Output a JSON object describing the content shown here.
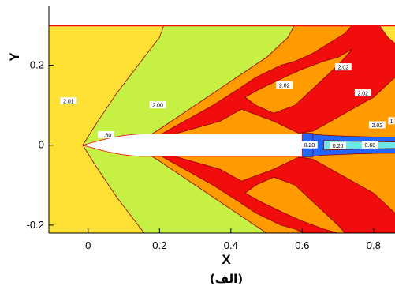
{
  "chart_data": {
    "type": "contour",
    "xlabel": "X",
    "ylabel": "Y",
    "xlim": [
      -0.11,
      0.86
    ],
    "ylim": [
      -0.22,
      0.3
    ],
    "x_ticks": [
      "0",
      "0.2",
      "0.4",
      "0.6",
      "0.8"
    ],
    "x_tick_values": [
      0,
      0.2,
      0.4,
      0.6,
      0.8
    ],
    "y_ticks": [
      "0.2",
      "0",
      "-0.2"
    ],
    "y_tick_values": [
      0.2,
      0,
      -0.2
    ],
    "caption": "(الف)",
    "contour_labels": [
      {
        "text": "2.01",
        "x": -0.055,
        "y": 0.11
      },
      {
        "text": "1.80",
        "x": 0.05,
        "y": 0.025
      },
      {
        "text": "2.00",
        "x": 0.195,
        "y": 0.1
      },
      {
        "text": "2.02",
        "x": 0.55,
        "y": 0.15
      },
      {
        "text": "2.02",
        "x": 0.715,
        "y": 0.195
      },
      {
        "text": "2.02",
        "x": 0.77,
        "y": 0.13
      },
      {
        "text": "2.02",
        "x": 0.81,
        "y": 0.05
      },
      {
        "text": "0.20",
        "x": 0.62,
        "y": 0.0
      },
      {
        "text": "0.20",
        "x": 0.7,
        "y": -0.002
      },
      {
        "text": "0.60",
        "x": 0.79,
        "y": 0.0
      },
      {
        "text": "1",
        "x": 0.85,
        "y": 0.06
      }
    ],
    "body_shape": {
      "nose_x": -0.015,
      "base_x": 0.6,
      "radius": 0.028
    },
    "upper_wall_y": 0.3,
    "colors": {
      "yellow": "#FFE135",
      "lime": "#C6F043",
      "orange": "#FF9A00",
      "red": "#F20D0D",
      "cyan": "#6FE7E7",
      "blue": "#2266FF",
      "contour_line": "#8B0000",
      "body": "#ffffff"
    }
  }
}
